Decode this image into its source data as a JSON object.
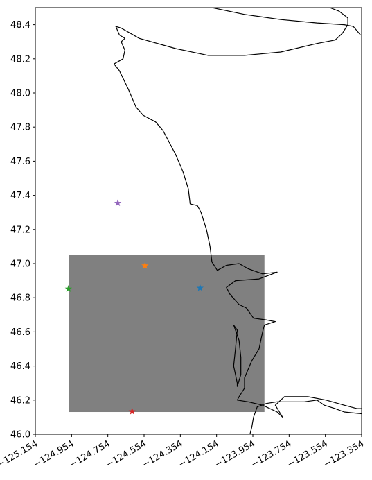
{
  "chart_data": {
    "type": "scatter",
    "projection": "map",
    "xlim": [
      -125.154,
      -123.354
    ],
    "ylim": [
      46.0,
      48.5
    ],
    "xticks": [
      -125.154,
      -124.954,
      -124.754,
      -124.554,
      -124.354,
      -124.154,
      -123.954,
      -123.754,
      -123.554,
      -123.354
    ],
    "xtick_labels": [
      "−125.154",
      "−124.954",
      "−124.754",
      "−124.554",
      "−124.354",
      "−124.154",
      "−123.954",
      "−123.754",
      "−123.554",
      "−123.354"
    ],
    "yticks": [
      46.0,
      46.2,
      46.4,
      46.6,
      46.8,
      47.0,
      47.2,
      47.4,
      47.6,
      47.8,
      48.0,
      48.2,
      48.4
    ],
    "ytick_labels": [
      "46.0",
      "46.2",
      "46.4",
      "46.6",
      "46.8",
      "47.0",
      "47.2",
      "47.4",
      "47.6",
      "47.8",
      "48.0",
      "48.2",
      "48.4"
    ],
    "grid": false,
    "region": {
      "lon": [
        -124.97,
        -123.89
      ],
      "lat": [
        46.13,
        47.05
      ],
      "color": "#808080"
    },
    "points": [
      {
        "lon": -124.245,
        "lat": 46.857,
        "color": "#1f77b4"
      },
      {
        "lon": -124.549,
        "lat": 46.988,
        "color": "#ff7f0e"
      },
      {
        "lon": -124.971,
        "lat": 46.852,
        "color": "#2ca02c"
      },
      {
        "lon": -124.62,
        "lat": 46.133,
        "color": "#d62728"
      },
      {
        "lon": -124.699,
        "lat": 47.355,
        "color": "#9467bd"
      }
    ],
    "coastline": [
      [
        [
          -124.18,
          48.5
        ],
        [
          -124.0,
          48.46
        ],
        [
          -123.8,
          48.43
        ],
        [
          -123.6,
          48.41
        ],
        [
          -123.45,
          48.4
        ],
        [
          -123.4,
          48.39
        ],
        [
          -123.36,
          48.34
        ]
      ],
      [
        [
          -123.53,
          48.5
        ],
        [
          -123.48,
          48.48
        ],
        [
          -123.43,
          48.44
        ],
        [
          -123.43,
          48.4
        ],
        [
          -123.46,
          48.35
        ],
        [
          -123.5,
          48.31
        ],
        [
          -123.6,
          48.29
        ],
        [
          -123.8,
          48.24
        ],
        [
          -124.0,
          48.22
        ],
        [
          -124.2,
          48.22
        ],
        [
          -124.38,
          48.26
        ],
        [
          -124.58,
          48.32
        ],
        [
          -124.68,
          48.38
        ],
        [
          -124.71,
          48.39
        ],
        [
          -124.69,
          48.34
        ],
        [
          -124.66,
          48.32
        ],
        [
          -124.68,
          48.3
        ],
        [
          -124.66,
          48.25
        ],
        [
          -124.67,
          48.2
        ],
        [
          -124.72,
          48.17
        ],
        [
          -124.69,
          48.13
        ],
        [
          -124.64,
          48.02
        ],
        [
          -124.6,
          47.92
        ],
        [
          -124.56,
          47.87
        ],
        [
          -124.49,
          47.83
        ],
        [
          -124.45,
          47.78
        ],
        [
          -124.42,
          47.72
        ],
        [
          -124.38,
          47.64
        ],
        [
          -124.34,
          47.54
        ],
        [
          -124.31,
          47.44
        ],
        [
          -124.3,
          47.35
        ],
        [
          -124.26,
          47.34
        ],
        [
          -124.24,
          47.3
        ],
        [
          -124.21,
          47.2
        ],
        [
          -124.19,
          47.1
        ],
        [
          -124.18,
          47.01
        ],
        [
          -124.15,
          46.96
        ],
        [
          -124.1,
          46.99
        ],
        [
          -124.03,
          47.0
        ],
        [
          -123.98,
          46.97
        ],
        [
          -123.9,
          46.94
        ],
        [
          -123.82,
          46.95
        ],
        [
          -123.92,
          46.91
        ],
        [
          -124.05,
          46.9
        ],
        [
          -124.1,
          46.86
        ],
        [
          -124.08,
          46.82
        ],
        [
          -124.03,
          46.76
        ],
        [
          -123.99,
          46.74
        ],
        [
          -123.95,
          46.68
        ],
        [
          -123.88,
          46.67
        ],
        [
          -123.83,
          46.66
        ],
        [
          -123.89,
          46.64
        ],
        [
          -123.9,
          46.6
        ],
        [
          -123.92,
          46.5
        ],
        [
          -123.96,
          46.43
        ],
        [
          -123.98,
          46.38
        ],
        [
          -124.0,
          46.33
        ],
        [
          -124.0,
          46.27
        ],
        [
          -124.03,
          46.22
        ],
        [
          -124.04,
          46.2
        ],
        [
          -123.98,
          46.19
        ],
        [
          -123.9,
          46.17
        ],
        [
          -123.82,
          46.13
        ],
        [
          -123.79,
          46.1
        ],
        [
          -123.83,
          46.17
        ],
        [
          -123.78,
          46.22
        ],
        [
          -123.65,
          46.22
        ],
        [
          -123.55,
          46.2
        ],
        [
          -123.45,
          46.17
        ],
        [
          -123.38,
          46.15
        ],
        [
          -123.354,
          46.15
        ]
      ],
      [
        [
          -123.354,
          46.12
        ],
        [
          -123.45,
          46.13
        ],
        [
          -123.5,
          46.15
        ],
        [
          -123.56,
          46.17
        ],
        [
          -123.6,
          46.2
        ],
        [
          -123.67,
          46.19
        ],
        [
          -123.74,
          46.19
        ],
        [
          -123.82,
          46.19
        ],
        [
          -123.88,
          46.18
        ],
        [
          -123.93,
          46.16
        ],
        [
          -123.95,
          46.1
        ],
        [
          -123.96,
          46.04
        ],
        [
          -123.97,
          46.0
        ]
      ],
      [
        [
          -124.06,
          46.64
        ],
        [
          -124.04,
          46.61
        ],
        [
          -124.05,
          46.5
        ],
        [
          -124.06,
          46.4
        ],
        [
          -124.04,
          46.3
        ],
        [
          -124.04,
          46.28
        ],
        [
          -124.02,
          46.35
        ],
        [
          -124.02,
          46.45
        ],
        [
          -124.03,
          46.55
        ],
        [
          -124.06,
          46.64
        ]
      ]
    ]
  }
}
